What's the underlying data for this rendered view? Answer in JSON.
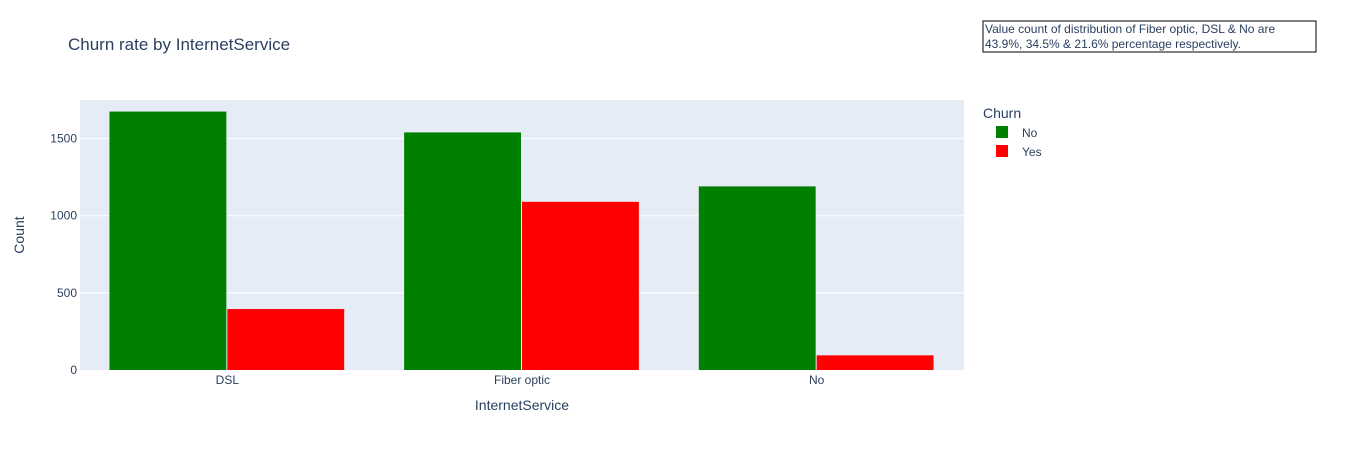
{
  "chart_data": {
    "type": "bar",
    "title": "Churn rate by InternetService",
    "xlabel": "InternetService",
    "ylabel": "Count",
    "categories": [
      "DSL",
      "Fiber optic",
      "No"
    ],
    "series": [
      {
        "name": "No",
        "color": "#008000",
        "values": [
          1675,
          1540,
          1190
        ]
      },
      {
        "name": "Yes",
        "color": "#ff0000",
        "values": [
          395,
          1090,
          95
        ]
      }
    ],
    "ylim": [
      0,
      1750
    ],
    "yticks": [
      0,
      500,
      1000,
      1500
    ],
    "ytick_labels": [
      "0",
      "500",
      "1000",
      "1500"
    ],
    "grid": true,
    "legend": {
      "title": "Churn",
      "position": "right"
    },
    "annotation": {
      "lines": [
        "Value count of distribution of Fiber optic, DSL & No are",
        "43.9%, 34.5% & 21.6% percentage respectively."
      ]
    },
    "plot_background": "#e5ecf6"
  }
}
